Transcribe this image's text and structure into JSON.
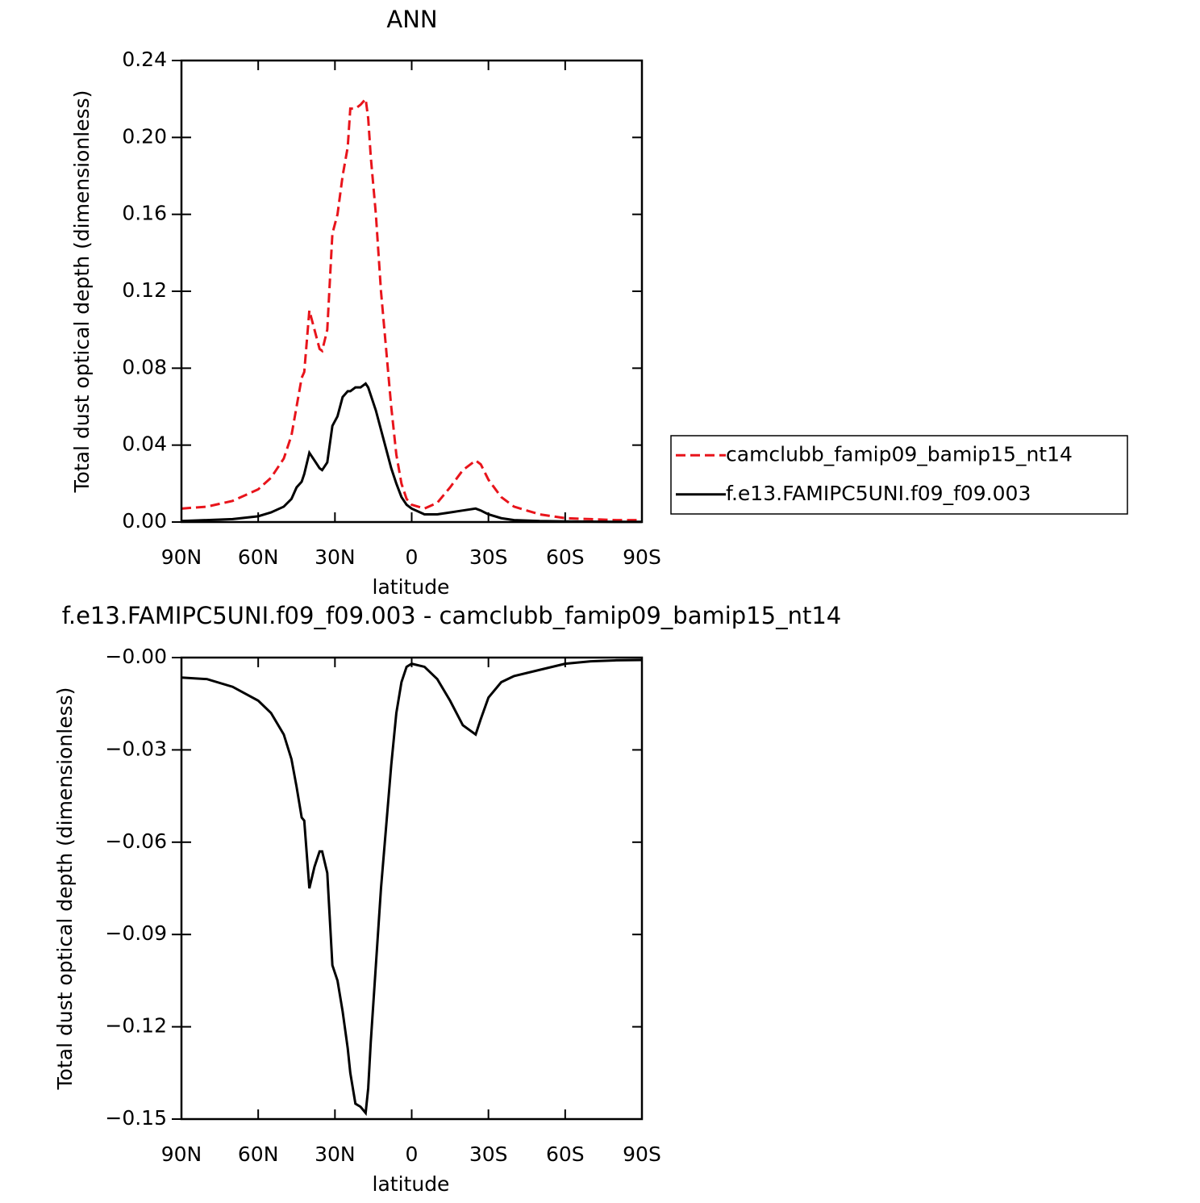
{
  "chart_data": [
    {
      "type": "line",
      "title": "ANN",
      "xlabel": "latitude",
      "ylabel": "Total dust optical depth (dimensionless)",
      "x": [
        90,
        80,
        70,
        60,
        55,
        50,
        47,
        45,
        43,
        42,
        40,
        38,
        36,
        35,
        33,
        31,
        29,
        27,
        25,
        24,
        22,
        20,
        18,
        17,
        16,
        14,
        12,
        10,
        8,
        6,
        4,
        2,
        0,
        -5,
        -10,
        -15,
        -20,
        -25,
        -27,
        -30,
        -35,
        -40,
        -50,
        -60,
        -70,
        -80,
        -90
      ],
      "series": [
        {
          "name": "camclubb_famip09_bamip15_nt14",
          "color": "#e8141b",
          "linestyle": "dashed",
          "values": [
            0.007,
            0.008,
            0.011,
            0.017,
            0.023,
            0.033,
            0.045,
            0.06,
            0.075,
            0.078,
            0.11,
            0.1,
            0.09,
            0.089,
            0.1,
            0.15,
            0.16,
            0.18,
            0.195,
            0.215,
            0.215,
            0.217,
            0.22,
            0.21,
            0.19,
            0.16,
            0.12,
            0.09,
            0.06,
            0.035,
            0.02,
            0.012,
            0.009,
            0.007,
            0.01,
            0.018,
            0.027,
            0.032,
            0.03,
            0.022,
            0.013,
            0.008,
            0.004,
            0.002,
            0.0015,
            0.001,
            0.001
          ]
        },
        {
          "name": "f.e13.FAMIPC5UNI.f09_f09.003",
          "color": "#000000",
          "linestyle": "solid",
          "values": [
            0.0005,
            0.001,
            0.0015,
            0.003,
            0.005,
            0.008,
            0.012,
            0.018,
            0.021,
            0.025,
            0.036,
            0.032,
            0.028,
            0.027,
            0.031,
            0.05,
            0.055,
            0.065,
            0.068,
            0.068,
            0.07,
            0.07,
            0.072,
            0.07,
            0.066,
            0.058,
            0.048,
            0.038,
            0.028,
            0.02,
            0.013,
            0.009,
            0.007,
            0.004,
            0.004,
            0.005,
            0.006,
            0.007,
            0.006,
            0.004,
            0.002,
            0.001,
            0.0005,
            0.0003,
            0.0002,
            0.0001,
            0.0001
          ]
        }
      ],
      "xlim": [
        90,
        -90
      ],
      "xticks": [
        {
          "value": 90,
          "label": "90N"
        },
        {
          "value": 60,
          "label": "60N"
        },
        {
          "value": 30,
          "label": "30N"
        },
        0,
        {
          "value": -30,
          "label": "30S"
        },
        {
          "value": -60,
          "label": "60S"
        },
        {
          "value": -90,
          "label": "90S"
        }
      ],
      "ylim": [
        0,
        0.24
      ],
      "yticks": [
        {
          "value": 0,
          "label": "0.00"
        },
        0.04,
        0.08,
        0.12,
        0.16,
        {
          "value": 0.2,
          "label": "0.20"
        },
        0.24
      ],
      "legend": "right"
    },
    {
      "type": "line",
      "title": "f.e13.FAMIPC5UNI.f09_f09.003 - camclubb_famip09_bamip15_nt14",
      "xlabel": "latitude",
      "ylabel": "Total dust optical depth (dimensionless)",
      "x": [
        90,
        80,
        70,
        60,
        55,
        50,
        47,
        45,
        43,
        42,
        40,
        38,
        36,
        35,
        33,
        31,
        29,
        27,
        25,
        24,
        22,
        20,
        18,
        17,
        16,
        14,
        12,
        10,
        8,
        6,
        4,
        2,
        0,
        -5,
        -10,
        -15,
        -20,
        -25,
        -27,
        -30,
        -35,
        -40,
        -50,
        -60,
        -70,
        -80,
        -90
      ],
      "series": [
        {
          "color": "#000000",
          "linestyle": "solid",
          "values": [
            -0.0065,
            -0.007,
            -0.0095,
            -0.014,
            -0.018,
            -0.025,
            -0.033,
            -0.042,
            -0.052,
            -0.053,
            -0.075,
            -0.068,
            -0.063,
            -0.063,
            -0.07,
            -0.1,
            -0.105,
            -0.115,
            -0.127,
            -0.135,
            -0.145,
            -0.146,
            -0.148,
            -0.14,
            -0.125,
            -0.1,
            -0.075,
            -0.055,
            -0.035,
            -0.018,
            -0.008,
            -0.003,
            -0.002,
            -0.003,
            -0.007,
            -0.014,
            -0.022,
            -0.025,
            -0.02,
            -0.013,
            -0.008,
            -0.006,
            -0.004,
            -0.002,
            -0.0012,
            -0.0009,
            -0.0008
          ]
        }
      ],
      "xlim": [
        90,
        -90
      ],
      "xticks": [
        {
          "value": 90,
          "label": "90N"
        },
        {
          "value": 60,
          "label": "60N"
        },
        {
          "value": 30,
          "label": "30N"
        },
        0,
        {
          "value": -30,
          "label": "30S"
        },
        {
          "value": -60,
          "label": "60S"
        },
        {
          "value": -90,
          "label": "90S"
        }
      ],
      "ylim": [
        -0.15,
        0
      ],
      "yticks": [
        {
          "value": -0.15,
          "label": "−0.15"
        },
        {
          "value": -0.12,
          "label": "−0.12"
        },
        {
          "value": -0.09,
          "label": "−0.09"
        },
        {
          "value": -0.06,
          "label": "−0.06"
        },
        {
          "value": -0.03,
          "label": "−0.03"
        },
        {
          "value": 0,
          "label": "−0.00"
        }
      ]
    }
  ]
}
